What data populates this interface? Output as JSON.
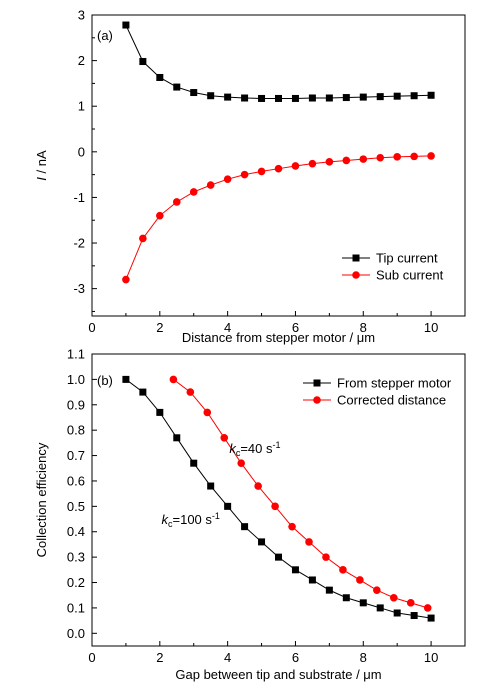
{
  "chart_data": [
    {
      "type": "line",
      "panel_label": "(a)",
      "xlabel": "Distance from stepper motor / μm",
      "ylabel_italic": "I",
      "ylabel_rest": " / nA",
      "xlim": [
        0,
        11
      ],
      "ylim": [
        -3.6,
        3
      ],
      "x_ticks": [
        "0",
        "2",
        "4",
        "6",
        "8",
        "10"
      ],
      "x_tick_values": [
        0,
        2,
        4,
        6,
        8,
        10
      ],
      "y_ticks": [
        "-3",
        "-2",
        "-1",
        "0",
        "1",
        "2",
        "3"
      ],
      "y_tick_values": [
        -3,
        -2,
        -1,
        0,
        1,
        2,
        3
      ],
      "legend_position": "bottom-right",
      "series": [
        {
          "name": "Tip current",
          "color": "#000000",
          "marker": "square",
          "x": [
            1,
            1.5,
            2,
            2.5,
            3,
            3.5,
            4,
            4.5,
            5,
            5.5,
            6,
            6.5,
            7,
            7.5,
            8,
            8.5,
            9,
            9.5,
            10
          ],
          "y": [
            2.78,
            1.98,
            1.63,
            1.42,
            1.3,
            1.23,
            1.2,
            1.18,
            1.17,
            1.17,
            1.17,
            1.18,
            1.18,
            1.19,
            1.2,
            1.21,
            1.22,
            1.23,
            1.24
          ]
        },
        {
          "name": "Sub current",
          "color": "#ff0000",
          "marker": "circle",
          "x": [
            1,
            1.5,
            2,
            2.5,
            3,
            3.5,
            4,
            4.5,
            5,
            5.5,
            6,
            6.5,
            7,
            7.5,
            8,
            8.5,
            9,
            9.5,
            10
          ],
          "y": [
            -2.8,
            -1.9,
            -1.4,
            -1.1,
            -0.88,
            -0.73,
            -0.6,
            -0.5,
            -0.43,
            -0.37,
            -0.31,
            -0.26,
            -0.22,
            -0.19,
            -0.16,
            -0.13,
            -0.11,
            -0.1,
            -0.09
          ]
        }
      ]
    },
    {
      "type": "line",
      "panel_label": "(b)",
      "xlabel": "Gap between tip and substrate / μm",
      "ylabel": "Collection efficiency",
      "xlim": [
        0,
        11
      ],
      "ylim": [
        -0.05,
        1.1
      ],
      "x_ticks": [
        "0",
        "2",
        "4",
        "6",
        "8",
        "10"
      ],
      "x_tick_values": [
        0,
        2,
        4,
        6,
        8,
        10
      ],
      "y_ticks": [
        "0.0",
        "0.1",
        "0.2",
        "0.3",
        "0.4",
        "0.5",
        "0.6",
        "0.7",
        "0.8",
        "0.9",
        "1.0",
        "1.1"
      ],
      "y_tick_values": [
        0,
        0.1,
        0.2,
        0.3,
        0.4,
        0.5,
        0.6,
        0.7,
        0.8,
        0.9,
        1.0,
        1.1
      ],
      "legend_position": "top-right",
      "series": [
        {
          "name": "From stepper motor",
          "color": "#000000",
          "marker": "square",
          "x": [
            1,
            1.5,
            2,
            2.5,
            3,
            3.5,
            4,
            4.5,
            5,
            5.5,
            6,
            6.5,
            7,
            7.5,
            8,
            8.5,
            9,
            9.5,
            10
          ],
          "y": [
            1.0,
            0.95,
            0.87,
            0.77,
            0.67,
            0.58,
            0.5,
            0.42,
            0.36,
            0.3,
            0.25,
            0.21,
            0.17,
            0.14,
            0.12,
            0.1,
            0.08,
            0.07,
            0.06
          ]
        },
        {
          "name": "Corrected distance",
          "color": "#ff0000",
          "marker": "circle",
          "x": [
            2.4,
            2.9,
            3.4,
            3.9,
            4.4,
            4.9,
            5.4,
            5.9,
            6.4,
            6.9,
            7.4,
            7.9,
            8.4,
            8.9,
            9.4,
            9.9
          ],
          "y": [
            1.0,
            0.95,
            0.87,
            0.77,
            0.67,
            0.58,
            0.5,
            0.42,
            0.36,
            0.3,
            0.25,
            0.21,
            0.17,
            0.14,
            0.12,
            0.1
          ]
        }
      ],
      "annotations": [
        {
          "k": "k",
          "sub": "c",
          "text": "=40 s",
          "sup": "-1",
          "x": 4.05,
          "y": 0.71
        },
        {
          "k": "k",
          "sub": "c",
          "text": "=100 s",
          "sup": "-1",
          "x": 2.05,
          "y": 0.43
        }
      ]
    }
  ]
}
